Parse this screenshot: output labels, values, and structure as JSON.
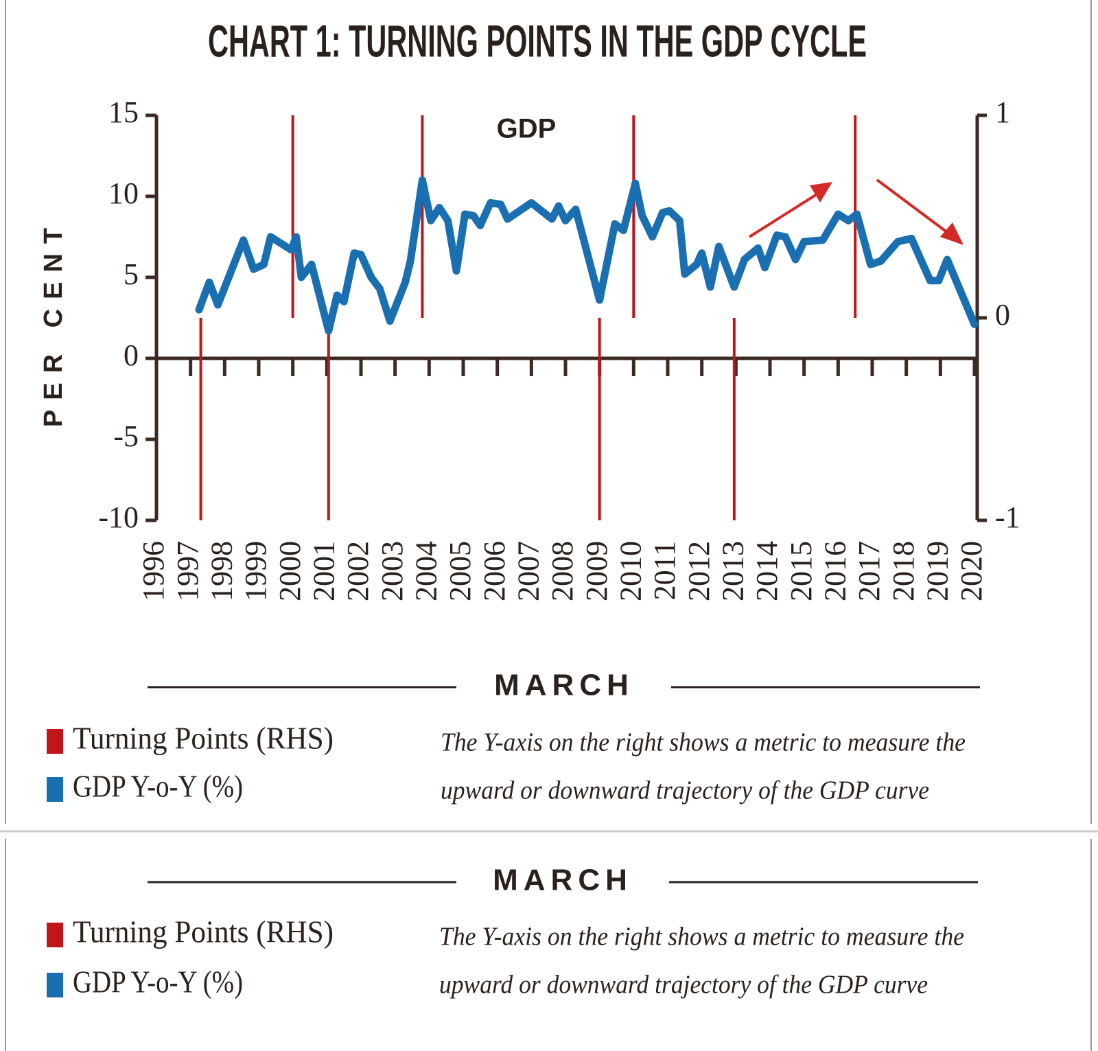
{
  "chart_data": {
    "type": "line",
    "title": "CHART 1: TURNING POINTS IN THE GDP CYCLE",
    "annotation": "GDP",
    "y_label": "PER CENT",
    "x_label": "MARCH",
    "note": [
      "The Y-axis on the right shows a metric to measure the",
      "upward or downward trajectory of the GDP curve"
    ],
    "xlim": [
      1996,
      2020
    ],
    "xticks": [
      1996,
      1997,
      1998,
      1999,
      2000,
      2001,
      2002,
      2003,
      2004,
      2005,
      2006,
      2007,
      2008,
      2009,
      2010,
      2011,
      2012,
      2013,
      2014,
      2015,
      2016,
      2017,
      2018,
      2019,
      2020
    ],
    "ylim": [
      -10,
      15
    ],
    "yticks": [
      -10,
      -5,
      0,
      5,
      10,
      15
    ],
    "y2lim": [
      -1,
      1
    ],
    "y2ticks": [
      -1,
      0,
      1
    ],
    "series": [
      {
        "name": "Turning Points (RHS)",
        "type": "bar",
        "axis": "y2",
        "color": "#c0161b",
        "x": [
          1997.3,
          2000.0,
          2001.05,
          2003.8,
          2009.0,
          2010.0,
          2012.95,
          2016.5
        ],
        "values": [
          -1,
          1,
          -1,
          1,
          -1,
          1,
          -1,
          1
        ]
      },
      {
        "name": "GDP Y-o-Y (%)",
        "type": "line",
        "color": "#1a6fb0",
        "x": [
          1997.25,
          1997.55,
          1997.8,
          1998.55,
          1998.85,
          1999.15,
          1999.35,
          1999.95,
          2000.1,
          2000.25,
          2000.55,
          2001.05,
          2001.3,
          2001.5,
          2001.8,
          2002.0,
          2002.3,
          2002.55,
          2002.85,
          2003.3,
          2003.45,
          2003.8,
          2004.05,
          2004.3,
          2004.55,
          2004.8,
          2005.05,
          2005.3,
          2005.5,
          2005.8,
          2006.1,
          2006.3,
          2007.0,
          2007.6,
          2007.8,
          2008.0,
          2008.3,
          2009.0,
          2009.45,
          2009.7,
          2010.05,
          2010.25,
          2010.55,
          2010.85,
          2011.05,
          2011.35,
          2011.5,
          2011.85,
          2012.0,
          2012.25,
          2012.5,
          2012.95,
          2013.25,
          2013.65,
          2013.85,
          2014.2,
          2014.45,
          2014.75,
          2015.0,
          2015.55,
          2016.0,
          2016.3,
          2016.55,
          2016.95,
          2017.25,
          2017.75,
          2018.15,
          2018.7,
          2018.95,
          2019.2,
          2020.0
        ],
        "values": [
          3.0,
          4.7,
          3.3,
          7.3,
          5.5,
          5.8,
          7.5,
          6.7,
          7.5,
          5.0,
          5.8,
          1.7,
          3.9,
          3.5,
          6.5,
          6.4,
          5.0,
          4.3,
          2.3,
          4.7,
          6.0,
          11.0,
          8.5,
          9.3,
          8.5,
          5.4,
          8.9,
          8.8,
          8.2,
          9.6,
          9.5,
          8.6,
          9.6,
          8.6,
          9.4,
          8.5,
          9.2,
          3.6,
          8.3,
          7.9,
          10.8,
          8.8,
          7.5,
          9.0,
          9.1,
          8.5,
          5.2,
          5.8,
          6.5,
          4.4,
          6.9,
          4.4,
          6.1,
          6.8,
          5.6,
          7.6,
          7.5,
          6.1,
          7.2,
          7.3,
          8.9,
          8.5,
          8.9,
          5.8,
          6.0,
          7.2,
          7.4,
          4.8,
          4.8,
          6.1,
          2.1
        ]
      }
    ]
  }
}
